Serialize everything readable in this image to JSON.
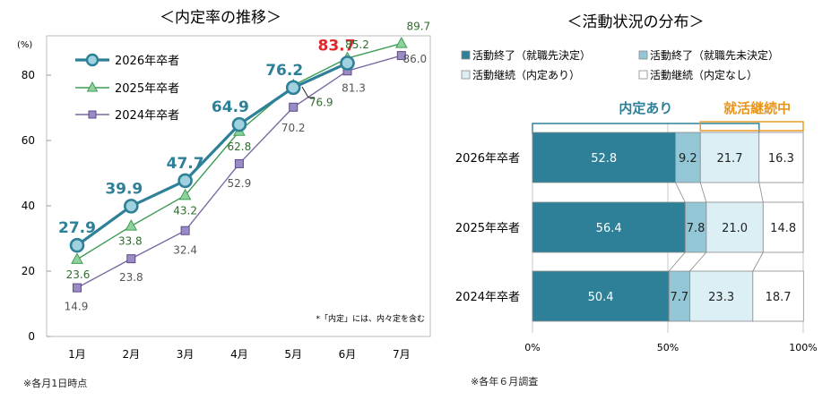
{
  "colors": {
    "y2026": "#2e8098",
    "y2025": "#3f9d57",
    "y2024": "#7a68a3",
    "y2024_label": "#555555",
    "y2025_label": "#2f6b2f",
    "highlight": "#e0262a",
    "bar_done": "#2e8098",
    "bar_done_undecided": "#93c7d6",
    "bar_cont_offer": "#dbeff4",
    "bar_cont_none": "#ffffff",
    "naitei_accent": "#2e8098",
    "shukatsu_accent": "#e8951c"
  },
  "chart_data": [
    {
      "type": "line",
      "title": "＜内定率の推移＞",
      "ylabel": "(%)",
      "ylim": [
        0,
        90
      ],
      "yticks": [
        "0",
        "20",
        "40",
        "60",
        "80"
      ],
      "categories": [
        "1月",
        "2月",
        "3月",
        "4月",
        "5月",
        "6月",
        "7月"
      ],
      "series": [
        {
          "name": "2026年卒者",
          "values": [
            27.9,
            39.9,
            47.7,
            64.9,
            76.2,
            83.7,
            null
          ],
          "labels": [
            "27.9",
            "39.9",
            "47.7",
            "64.9",
            "76.2",
            "83.7",
            ""
          ]
        },
        {
          "name": "2025年卒者",
          "values": [
            23.6,
            33.8,
            43.2,
            62.8,
            76.9,
            85.2,
            89.7
          ],
          "labels": [
            "23.6",
            "33.8",
            "43.2",
            "62.8",
            "76.9",
            "85.2",
            "89.7"
          ]
        },
        {
          "name": "2024年卒者",
          "values": [
            14.9,
            23.8,
            32.4,
            52.9,
            70.2,
            81.3,
            86.0
          ],
          "labels": [
            "14.9",
            "23.8",
            "32.4",
            "52.9",
            "70.2",
            "81.3",
            "86.0"
          ]
        }
      ],
      "annotation": "*「内定」には、内々定を含む",
      "footnote": "※各月1日時点"
    },
    {
      "type": "bar",
      "orientation": "horizontal-stacked",
      "title": "＜活動状況の分布＞",
      "legend": [
        "活動終了（就職先決定）",
        "活動終了（就職先未決定）",
        "活動継続（内定あり）",
        "活動継続（内定なし）"
      ],
      "categories": [
        "2026年卒者",
        "2025年卒者",
        "2024年卒者"
      ],
      "series": [
        {
          "name": "活動終了（就職先決定）",
          "values": [
            52.8,
            56.4,
            50.4
          ],
          "labels": [
            "52.8",
            "56.4",
            "50.4"
          ]
        },
        {
          "name": "活動終了（就職先未決定）",
          "values": [
            9.2,
            7.8,
            7.7
          ],
          "labels": [
            "9.2",
            "7.8",
            "7.7"
          ]
        },
        {
          "name": "活動継続（内定あり）",
          "values": [
            21.7,
            21.0,
            23.3
          ],
          "labels": [
            "21.7",
            "21.0",
            "23.3"
          ]
        },
        {
          "name": "活動継続（内定なし）",
          "values": [
            16.3,
            14.8,
            18.7
          ],
          "labels": [
            "16.3",
            "14.8",
            "18.7"
          ]
        }
      ],
      "xlim": [
        0,
        100
      ],
      "xticks": [
        "0%",
        "50%",
        "100%"
      ],
      "bracket_labels": {
        "naitei": "内定あり",
        "shukatsu": "就活継続中"
      },
      "footnote": "※各年６月調査"
    }
  ]
}
